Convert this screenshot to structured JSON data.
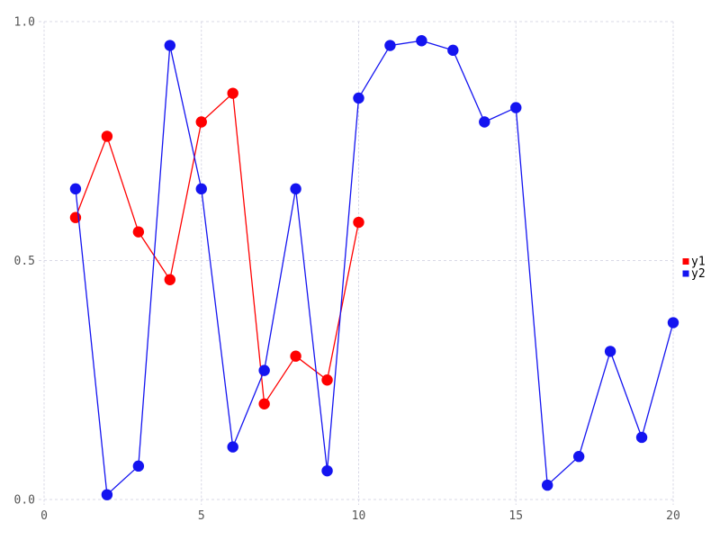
{
  "chart_data": {
    "type": "line",
    "title": "",
    "xlabel": "",
    "ylabel": "",
    "xlim": [
      0,
      20
    ],
    "ylim": [
      0.0,
      1.0
    ],
    "x_ticks": [
      0,
      5,
      10,
      15,
      20
    ],
    "x_tick_labels": [
      "0",
      "5",
      "10",
      "15",
      "20"
    ],
    "y_ticks": [
      0.0,
      0.5,
      1.0
    ],
    "y_tick_labels": [
      "0.0",
      "0.5",
      "1.0"
    ],
    "grid": true,
    "grid_style": "dashed",
    "legend_position": "right",
    "marker": "circle",
    "series": [
      {
        "name": "y1",
        "color": "#ff0000",
        "x": [
          1,
          2,
          3,
          4,
          5,
          6,
          7,
          8,
          9,
          10
        ],
        "y": [
          0.59,
          0.76,
          0.56,
          0.46,
          0.79,
          0.85,
          0.2,
          0.3,
          0.25,
          0.58
        ]
      },
      {
        "name": "y2",
        "color": "#1414f0",
        "x": [
          1,
          2,
          3,
          4,
          5,
          6,
          7,
          8,
          9,
          10,
          11,
          12,
          13,
          14,
          15,
          16,
          17,
          18,
          19,
          20
        ],
        "y": [
          0.65,
          0.01,
          0.07,
          0.95,
          0.65,
          0.11,
          0.27,
          0.65,
          0.06,
          0.84,
          0.95,
          0.96,
          0.94,
          0.79,
          0.82,
          0.03,
          0.09,
          0.31,
          0.13,
          0.37
        ]
      }
    ]
  },
  "style": {
    "background_color": "#ffffff",
    "grid_color": "#d8d8e6",
    "tick_label_color": "#555555",
    "legend_text_color": "#000000"
  },
  "legend": {
    "items": [
      {
        "label": "y1",
        "color": "#ff0000"
      },
      {
        "label": "y2",
        "color": "#1414f0"
      }
    ]
  }
}
